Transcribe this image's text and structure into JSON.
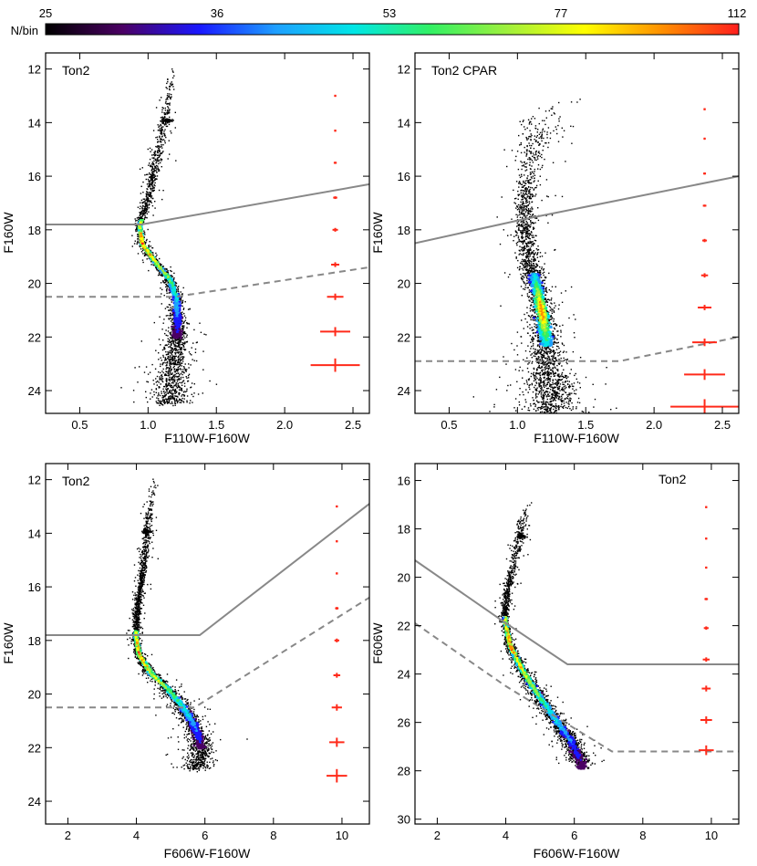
{
  "colorbar": {
    "label": "N/bin",
    "ticks": [
      "25",
      "36",
      "53",
      "77",
      "112"
    ],
    "colors": [
      "#000000",
      "#4b0064",
      "#1a18ff",
      "#1ea0ff",
      "#00e6e6",
      "#32f064",
      "#a0f03c",
      "#ffff00",
      "#ff9000",
      "#ff1e1e"
    ]
  },
  "styles": {
    "point_color": "#000000",
    "error_color": "#ff2a1a",
    "line_color": "#888888",
    "axis_color": "#000000"
  },
  "chart_data": [
    {
      "type": "scatter",
      "title": "Ton2",
      "xlabel": "F110W-F160W",
      "ylabel": "F160W",
      "xlim": [
        0.25,
        2.62
      ],
      "ylim": [
        24.85,
        11.4
      ],
      "xticks": [
        0.5,
        1.0,
        1.5,
        2.0,
        2.5
      ],
      "xtick_labels": [
        "0.5",
        "1.0",
        "1.5",
        "2.0",
        "2.5"
      ],
      "yticks": [
        12,
        14,
        16,
        18,
        20,
        22,
        24
      ],
      "ytick_labels": [
        "12",
        "14",
        "16",
        "18",
        "20",
        "22",
        "24"
      ],
      "solid_line": [
        [
          0.25,
          17.8
        ],
        [
          0.95,
          17.8
        ],
        [
          2.62,
          16.3
        ]
      ],
      "dashed_line": [
        [
          0.25,
          20.5
        ],
        [
          1.2,
          20.5
        ],
        [
          2.62,
          19.4
        ]
      ],
      "error_bars": {
        "x": 2.37,
        "mags": [
          13.0,
          14.3,
          15.5,
          16.8,
          18.0,
          19.3,
          20.5,
          21.8,
          23.05
        ],
        "xerr": [
          0.005,
          0.008,
          0.011,
          0.015,
          0.02,
          0.03,
          0.06,
          0.11,
          0.18
        ],
        "yerr": [
          0.01,
          0.02,
          0.03,
          0.05,
          0.07,
          0.09,
          0.12,
          0.17,
          0.25
        ]
      },
      "sequence": {
        "upper": [
          [
            12.0,
            1.18,
            0.045
          ],
          [
            13.8,
            1.12,
            0.05
          ],
          [
            15.5,
            1.05,
            0.05
          ],
          [
            17.0,
            0.99,
            0.045
          ],
          [
            17.8,
            0.93,
            0.035
          ],
          [
            18.5,
            0.95,
            0.035
          ],
          [
            19.2,
            1.05,
            0.045
          ],
          [
            19.8,
            1.15,
            0.05
          ],
          [
            20.5,
            1.2,
            0.06
          ],
          [
            21.5,
            1.21,
            0.08
          ],
          [
            22.5,
            1.2,
            0.11
          ],
          [
            23.5,
            1.18,
            0.15
          ],
          [
            24.5,
            1.15,
            0.18
          ]
        ],
        "clump": {
          "mag": 13.9,
          "color": 1.14,
          "dx": 0.05,
          "dy": 0.1
        }
      },
      "density_peak": {
        "mag": 18.5,
        "color": 0.95
      }
    },
    {
      "type": "scatter",
      "title": "Ton2 CPAR",
      "xlabel": "F110W-F160W",
      "ylabel": "F160W",
      "xlim": [
        0.25,
        2.62
      ],
      "ylim": [
        24.85,
        11.4
      ],
      "xticks": [
        0.5,
        1.0,
        1.5,
        2.0,
        2.5
      ],
      "xtick_labels": [
        "0.5",
        "1.0",
        "1.5",
        "2.0",
        "2.5"
      ],
      "yticks": [
        12,
        14,
        16,
        18,
        20,
        22,
        24
      ],
      "ytick_labels": [
        "12",
        "14",
        "16",
        "18",
        "20",
        "22",
        "24"
      ],
      "solid_line": [
        [
          0.25,
          18.5
        ],
        [
          1.05,
          17.6
        ],
        [
          2.62,
          16.0
        ]
      ],
      "dashed_line": [
        [
          0.25,
          22.9
        ],
        [
          1.75,
          22.9
        ],
        [
          2.62,
          22.0
        ]
      ],
      "error_bars": {
        "x": 2.37,
        "mags": [
          13.5,
          14.6,
          15.9,
          17.1,
          18.4,
          19.7,
          20.9,
          22.2,
          23.4,
          24.6
        ],
        "xerr": [
          0.005,
          0.007,
          0.01,
          0.013,
          0.017,
          0.025,
          0.05,
          0.09,
          0.15,
          0.25
        ],
        "yerr": [
          0.01,
          0.02,
          0.03,
          0.04,
          0.06,
          0.08,
          0.1,
          0.14,
          0.2,
          0.28
        ]
      },
      "sequence": {
        "upper": [
          [
            13.0,
            1.25,
            0.3
          ],
          [
            15.0,
            1.1,
            0.12
          ],
          [
            17.0,
            1.05,
            0.09
          ],
          [
            18.0,
            1.05,
            0.09
          ],
          [
            19.0,
            1.08,
            0.1
          ],
          [
            20.0,
            1.13,
            0.1
          ],
          [
            21.0,
            1.17,
            0.11
          ],
          [
            22.0,
            1.2,
            0.13
          ],
          [
            23.0,
            1.22,
            0.17
          ],
          [
            24.0,
            1.25,
            0.22
          ],
          [
            24.8,
            1.25,
            0.28
          ]
        ],
        "clump": null
      },
      "density_peak": {
        "mag": 21.0,
        "color": 1.17
      }
    },
    {
      "type": "scatter",
      "title": "Ton2",
      "xlabel": "F606W-F160W",
      "ylabel": "F160W",
      "xlim": [
        1.35,
        10.8
      ],
      "ylim": [
        24.85,
        11.4
      ],
      "xticks": [
        2,
        4,
        6,
        8,
        10
      ],
      "xtick_labels": [
        "2",
        "4",
        "6",
        "8",
        "10"
      ],
      "yticks": [
        12,
        14,
        16,
        18,
        20,
        22,
        24
      ],
      "ytick_labels": [
        "12",
        "14",
        "16",
        "18",
        "20",
        "22",
        "24"
      ],
      "solid_line": [
        [
          1.35,
          17.8
        ],
        [
          4.1,
          17.8
        ],
        [
          5.85,
          17.8
        ],
        [
          10.8,
          12.9
        ]
      ],
      "dashed_line": [
        [
          1.35,
          20.5
        ],
        [
          4.3,
          20.5
        ],
        [
          5.7,
          20.5
        ],
        [
          10.8,
          16.4
        ]
      ],
      "error_bars": {
        "x": 9.85,
        "mags": [
          13.0,
          14.3,
          15.5,
          16.8,
          18.0,
          19.3,
          20.5,
          21.8,
          23.05
        ],
        "xerr": [
          0.01,
          0.02,
          0.03,
          0.05,
          0.07,
          0.1,
          0.15,
          0.22,
          0.3
        ],
        "yerr": [
          0.01,
          0.02,
          0.03,
          0.05,
          0.07,
          0.09,
          0.12,
          0.17,
          0.25
        ]
      },
      "sequence": {
        "upper": [
          [
            12.0,
            4.5,
            0.18
          ],
          [
            13.8,
            4.3,
            0.15
          ],
          [
            15.5,
            4.15,
            0.14
          ],
          [
            17.0,
            4.0,
            0.13
          ],
          [
            17.8,
            3.95,
            0.13
          ],
          [
            18.5,
            4.05,
            0.15
          ],
          [
            19.2,
            4.4,
            0.22
          ],
          [
            19.8,
            4.9,
            0.28
          ],
          [
            20.4,
            5.3,
            0.32
          ],
          [
            21.0,
            5.6,
            0.35
          ],
          [
            21.6,
            5.8,
            0.4
          ],
          [
            22.2,
            5.9,
            0.45
          ],
          [
            22.8,
            5.7,
            0.45
          ]
        ],
        "clump": {
          "mag": 13.9,
          "color": 4.3,
          "dx": 0.2,
          "dy": 0.1
        }
      },
      "density_peak": {
        "mag": 18.5,
        "color": 4.05
      }
    },
    {
      "type": "scatter",
      "title": "Ton2",
      "xlabel": "F606W-F160W",
      "ylabel": "F606W",
      "xlim": [
        1.35,
        10.8
      ],
      "ylim": [
        30.2,
        15.3
      ],
      "xticks": [
        2,
        4,
        6,
        8,
        10
      ],
      "xtick_labels": [
        "2",
        "4",
        "6",
        "8",
        "10"
      ],
      "yticks": [
        16,
        18,
        20,
        22,
        24,
        26,
        28,
        30
      ],
      "ytick_labels": [
        "16",
        "18",
        "20",
        "22",
        "24",
        "26",
        "28",
        "30"
      ],
      "solid_line": [
        [
          1.35,
          19.3
        ],
        [
          3.9,
          21.8
        ],
        [
          5.8,
          23.6
        ],
        [
          10.8,
          23.6
        ]
      ],
      "dashed_line": [
        [
          1.35,
          21.9
        ],
        [
          4.0,
          24.5
        ],
        [
          7.1,
          27.2
        ],
        [
          10.8,
          27.2
        ]
      ],
      "error_bars": {
        "x": 9.85,
        "mags": [
          17.1,
          18.4,
          19.6,
          20.9,
          22.1,
          23.4,
          24.6,
          25.9,
          27.15
        ],
        "xerr": [
          0.01,
          0.02,
          0.03,
          0.05,
          0.07,
          0.1,
          0.13,
          0.17,
          0.22
        ],
        "yerr": [
          0.01,
          0.02,
          0.03,
          0.05,
          0.07,
          0.09,
          0.12,
          0.15,
          0.2
        ]
      },
      "sequence": {
        "upper": [
          [
            16.8,
            4.6,
            0.2
          ],
          [
            18.2,
            4.4,
            0.18
          ],
          [
            19.5,
            4.2,
            0.15
          ],
          [
            20.8,
            4.0,
            0.14
          ],
          [
            21.8,
            3.95,
            0.14
          ],
          [
            22.8,
            4.1,
            0.16
          ],
          [
            23.8,
            4.45,
            0.22
          ],
          [
            24.8,
            4.9,
            0.28
          ],
          [
            25.8,
            5.4,
            0.32
          ],
          [
            26.8,
            5.9,
            0.36
          ],
          [
            27.7,
            6.2,
            0.4
          ]
        ],
        "clump": {
          "mag": 18.3,
          "color": 4.45,
          "dx": 0.2,
          "dy": 0.12
        }
      },
      "density_peak": {
        "mag": 22.8,
        "color": 4.1
      }
    }
  ]
}
